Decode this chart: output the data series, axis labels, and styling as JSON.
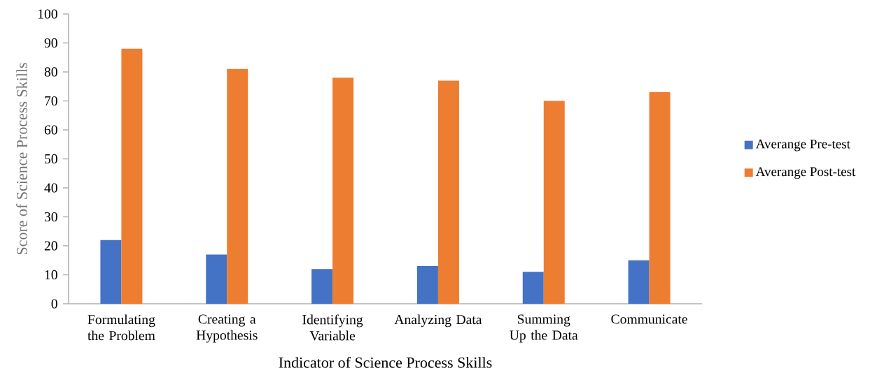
{
  "chart_data": {
    "type": "bar",
    "categories": [
      "Formulating the Problem",
      "Creating a Hypothesis",
      "Identifying Variable",
      "Analyzing Data",
      "Summing Up the Data",
      "Communicate"
    ],
    "series": [
      {
        "name": "Averange Pre-test",
        "color": "#4472c4",
        "values": [
          22,
          17,
          12,
          13,
          11,
          15
        ]
      },
      {
        "name": "Averange Post-test",
        "color": "#ed7d31",
        "values": [
          88,
          81,
          78,
          77,
          70,
          73
        ]
      }
    ],
    "xlabel": "Indicator of Science Process Skills",
    "ylabel": "Score of Science Process Skills",
    "ylim": [
      0,
      100
    ],
    "yticks": [
      0,
      10,
      20,
      30,
      40,
      50,
      60,
      70,
      80,
      90,
      100
    ],
    "legend": "right"
  }
}
